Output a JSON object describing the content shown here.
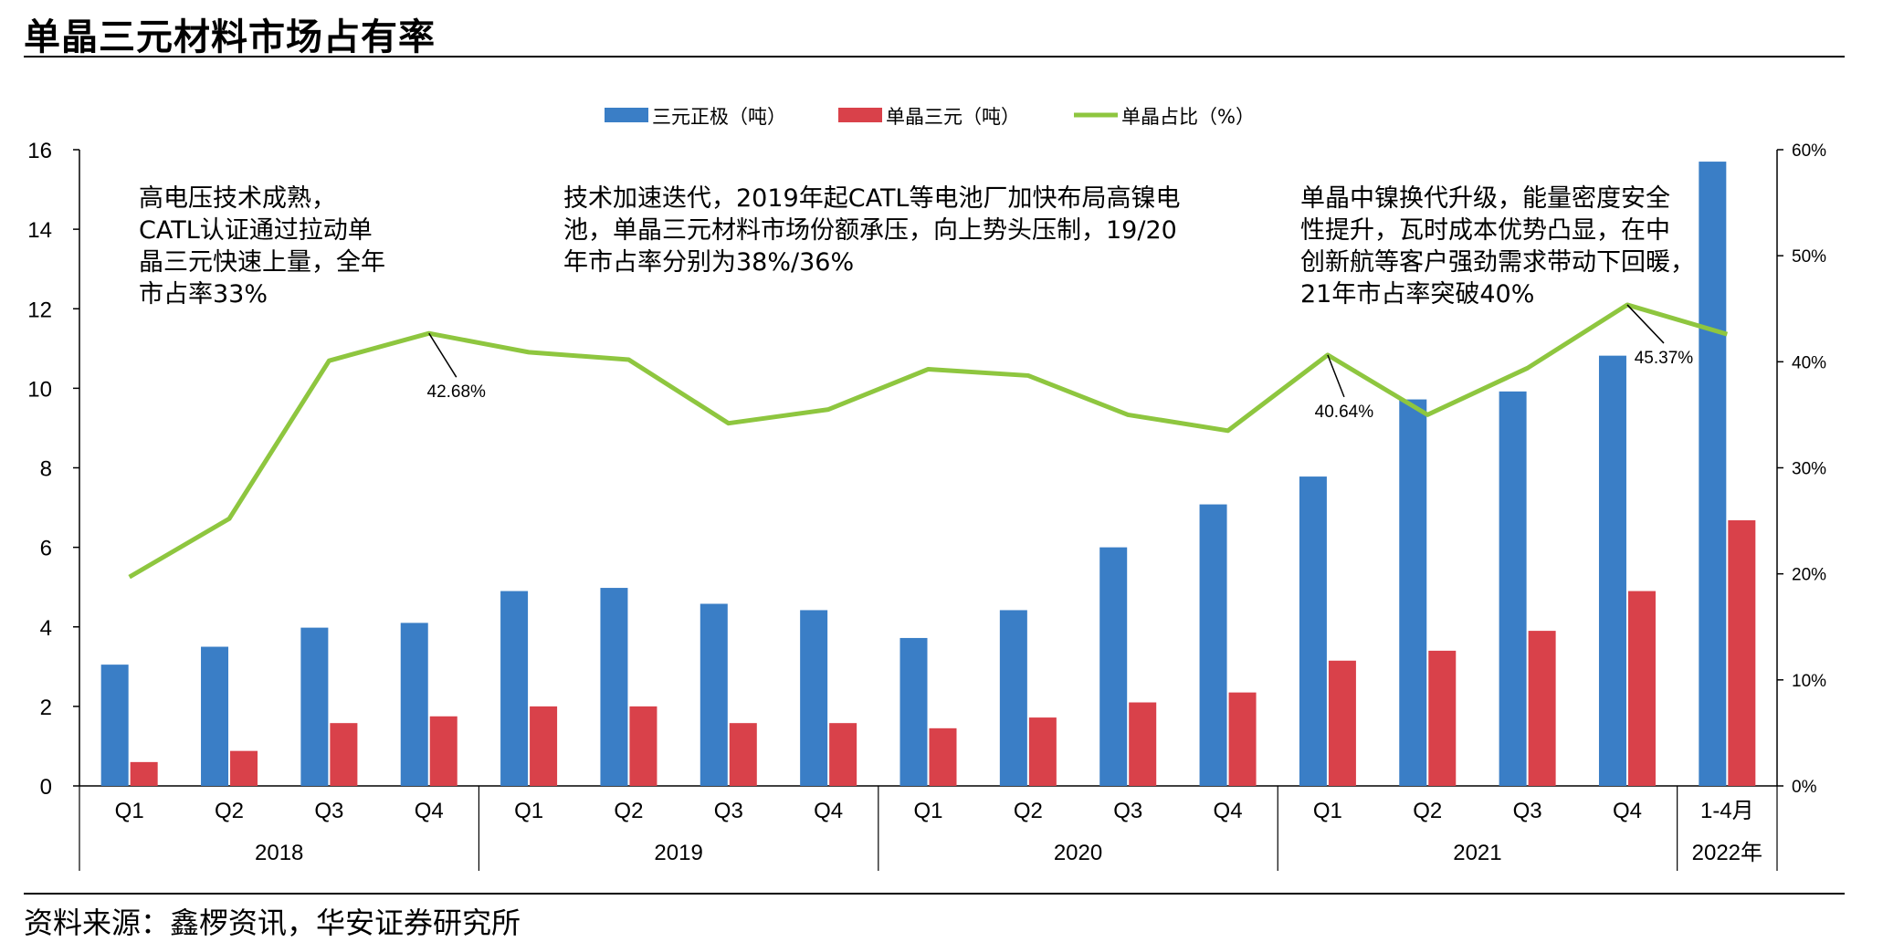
{
  "header": {
    "title": "单晶三元材料市场占有率"
  },
  "footer": {
    "source": "资料来源：鑫椤资讯，华安证券研究所"
  },
  "colors": {
    "bar_ternary": "#3a7ec6",
    "bar_single": "#d9414a",
    "line_share": "#8ec63f"
  },
  "chart_data": {
    "type": "bar",
    "categories": [
      "Q1",
      "Q2",
      "Q3",
      "Q4",
      "Q1",
      "Q2",
      "Q3",
      "Q4",
      "Q1",
      "Q2",
      "Q3",
      "Q4",
      "Q1",
      "Q2",
      "Q3",
      "Q4",
      "1-4月"
    ],
    "groups": [
      {
        "label": "2018",
        "count": 4
      },
      {
        "label": "2019",
        "count": 4
      },
      {
        "label": "2020",
        "count": 4
      },
      {
        "label": "2021",
        "count": 4
      },
      {
        "label": "2022年",
        "count": 1
      }
    ],
    "series": [
      {
        "name": "三元正极（吨）",
        "type": "bar",
        "axis": "left",
        "values": [
          3.05,
          3.5,
          3.98,
          4.1,
          4.9,
          4.98,
          4.58,
          4.42,
          3.72,
          4.42,
          6.0,
          7.08,
          7.78,
          9.72,
          9.92,
          10.82,
          15.7
        ]
      },
      {
        "name": "单晶三元（吨）",
        "type": "bar",
        "axis": "left",
        "values": [
          0.6,
          0.88,
          1.58,
          1.75,
          2.0,
          2.0,
          1.58,
          1.58,
          1.45,
          1.72,
          2.1,
          2.35,
          3.15,
          3.4,
          3.9,
          4.9,
          6.68
        ]
      },
      {
        "name": "单晶占比（%）",
        "type": "line",
        "axis": "right",
        "values": [
          19.7,
          25.2,
          40.1,
          42.68,
          40.9,
          40.2,
          34.2,
          35.5,
          39.3,
          38.7,
          35.0,
          33.5,
          40.64,
          35.0,
          39.4,
          45.37,
          42.6
        ]
      }
    ],
    "left_axis": {
      "min": 0,
      "max": 16,
      "ticks": [
        "0",
        "2",
        "4",
        "6",
        "8",
        "10",
        "12",
        "14",
        "16"
      ]
    },
    "right_axis": {
      "min": 0,
      "max": 60,
      "ticks": [
        "0%",
        "10%",
        "20%",
        "30%",
        "40%",
        "50%",
        "60%"
      ]
    },
    "legend_position": "top-center",
    "point_labels": [
      {
        "index": 3,
        "text": "42.68%"
      },
      {
        "index": 12,
        "text": "40.64%"
      },
      {
        "index": 15,
        "text": "45.37%"
      }
    ],
    "annotations": [
      {
        "lines": [
          "高电压技术成熟，",
          "CATL认证通过拉动单",
          "晶三元快速上量，全年",
          "市占率33%"
        ]
      },
      {
        "lines": [
          "技术加速迭代，2019年起CATL等电池厂加快布局高镍电",
          "池，单晶三元材料市场份额承压，向上势头压制，19/20",
          "年市占率分别为38%/36%"
        ]
      },
      {
        "lines": [
          "单晶中镍换代升级，能量密度安全",
          "性提升，瓦时成本优势凸显，在中",
          "创新航等客户强劲需求带动下回暖，",
          "21年市占率突破40%"
        ]
      }
    ]
  }
}
